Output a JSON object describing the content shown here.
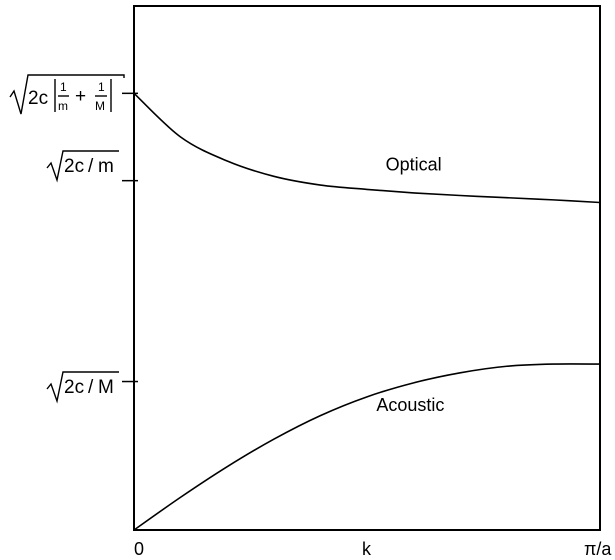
{
  "chart_data": {
    "type": "line",
    "title": "",
    "xlabel": "k",
    "ylabel": "",
    "x_ticks": [
      "0",
      "π/a"
    ],
    "y_ticks": [
      {
        "name": "sqrt-2c-1m-1M",
        "value": 1.0,
        "symbol": "√(2c(1/m + 1/M))",
        "parts": {
          "coef": "2c",
          "a": "1",
          "am": "m",
          "plus": "+",
          "b": "1",
          "bM": "M"
        }
      },
      {
        "name": "sqrt-2c-m",
        "value": 0.8,
        "symbol": "√(2c/m)",
        "parts": {
          "coef": "2c",
          "slash": "/",
          "den": "m"
        }
      },
      {
        "name": "sqrt-2c-M",
        "value": 0.34,
        "symbol": "√(2c/M)",
        "parts": {
          "coef": "2c",
          "slash": "/",
          "den": "M"
        }
      }
    ],
    "ylim": [
      0,
      1.2
    ],
    "xlim": [
      0,
      1
    ],
    "grid": false,
    "series": [
      {
        "name": "Optical",
        "x": [
          0,
          0.1,
          0.2,
          0.3,
          0.4,
          0.5,
          0.6,
          0.7,
          0.8,
          0.9,
          1.0
        ],
        "y": [
          1.0,
          0.9,
          0.845,
          0.81,
          0.79,
          0.78,
          0.772,
          0.766,
          0.761,
          0.756,
          0.75
        ]
      },
      {
        "name": "Acoustic",
        "x": [
          0,
          0.1,
          0.2,
          0.3,
          0.4,
          0.5,
          0.6,
          0.7,
          0.8,
          0.9,
          1.0
        ],
        "y": [
          0,
          0.075,
          0.145,
          0.208,
          0.262,
          0.305,
          0.337,
          0.36,
          0.375,
          0.38,
          0.38
        ]
      }
    ]
  }
}
